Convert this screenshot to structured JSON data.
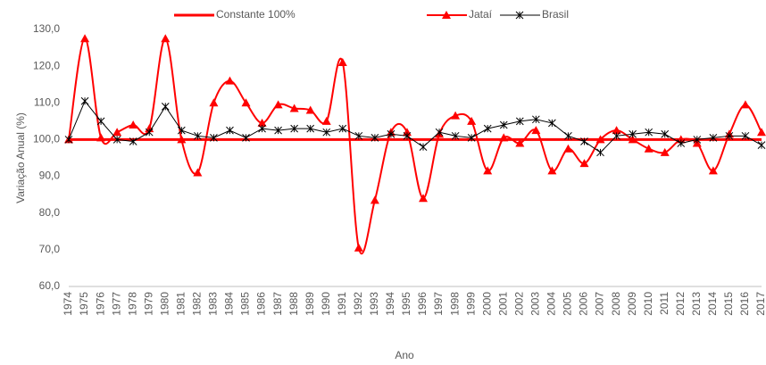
{
  "chart_data": {
    "type": "line",
    "y_label": "Variação Anual (%)",
    "x_label": "Ano",
    "categories": [
      "1974",
      "1975",
      "1976",
      "1977",
      "1978",
      "1979",
      "1980",
      "1981",
      "1982",
      "1983",
      "1984",
      "1985",
      "1986",
      "1987",
      "1988",
      "1989",
      "1990",
      "1991",
      "1992",
      "1993",
      "1994",
      "1995",
      "1996",
      "1997",
      "1998",
      "1999",
      "2000",
      "2001",
      "2002",
      "2003",
      "2004",
      "2005",
      "2006",
      "2007",
      "2008",
      "2009",
      "2010",
      "2011",
      "2012",
      "2013",
      "2014",
      "2015",
      "2016",
      "2017"
    ],
    "series": [
      {
        "name": "Constante 100%",
        "color": "#ff0000",
        "marker": "none",
        "smooth": false,
        "values": [
          100,
          100,
          100,
          100,
          100,
          100,
          100,
          100,
          100,
          100,
          100,
          100,
          100,
          100,
          100,
          100,
          100,
          100,
          100,
          100,
          100,
          100,
          100,
          100,
          100,
          100,
          100,
          100,
          100,
          100,
          100,
          100,
          100,
          100,
          100,
          100,
          100,
          100,
          100,
          100,
          100,
          100,
          100,
          100
        ]
      },
      {
        "name": "Jataí",
        "color": "#ff0000",
        "marker": "triangle",
        "smooth": true,
        "values": [
          100,
          127.5,
          100.5,
          102,
          104,
          103,
          127.5,
          100,
          91,
          110,
          116,
          110,
          104.5,
          109.5,
          108.5,
          108,
          105,
          121,
          70.5,
          83.5,
          102,
          102,
          84,
          101.5,
          106.5,
          105,
          91.5,
          100.5,
          99,
          102.5,
          91.5,
          97.5,
          93.5,
          100,
          102.5,
          100,
          97.5,
          96.5,
          100,
          99,
          91.5,
          101.5,
          109.5,
          102
        ]
      },
      {
        "name": "Brasil",
        "color": "#000000",
        "marker": "star",
        "smooth": false,
        "values": [
          100,
          110.5,
          105,
          100,
          99.5,
          102,
          109,
          102.5,
          101,
          100.5,
          102.5,
          100.5,
          103,
          102.5,
          103,
          103,
          102,
          103,
          101,
          100.5,
          101.5,
          101,
          98,
          102,
          101,
          100.5,
          103,
          104,
          105,
          105.5,
          104.5,
          101,
          99.5,
          96.5,
          101,
          101.5,
          102,
          101.5,
          99,
          100,
          100.5,
          101,
          101,
          98.5
        ]
      }
    ],
    "ylim": [
      60,
      130
    ],
    "yticks": [
      {
        "value": 60,
        "label": "60,0"
      },
      {
        "value": 70,
        "label": "70,0"
      },
      {
        "value": 80,
        "label": "80,0"
      },
      {
        "value": 90,
        "label": "90,0"
      },
      {
        "value": 100,
        "label": "100,0"
      },
      {
        "value": 110,
        "label": "110,0"
      },
      {
        "value": 120,
        "label": "120,0"
      },
      {
        "value": 130,
        "label": "130,0"
      }
    ],
    "legend": "top",
    "grid": false
  }
}
